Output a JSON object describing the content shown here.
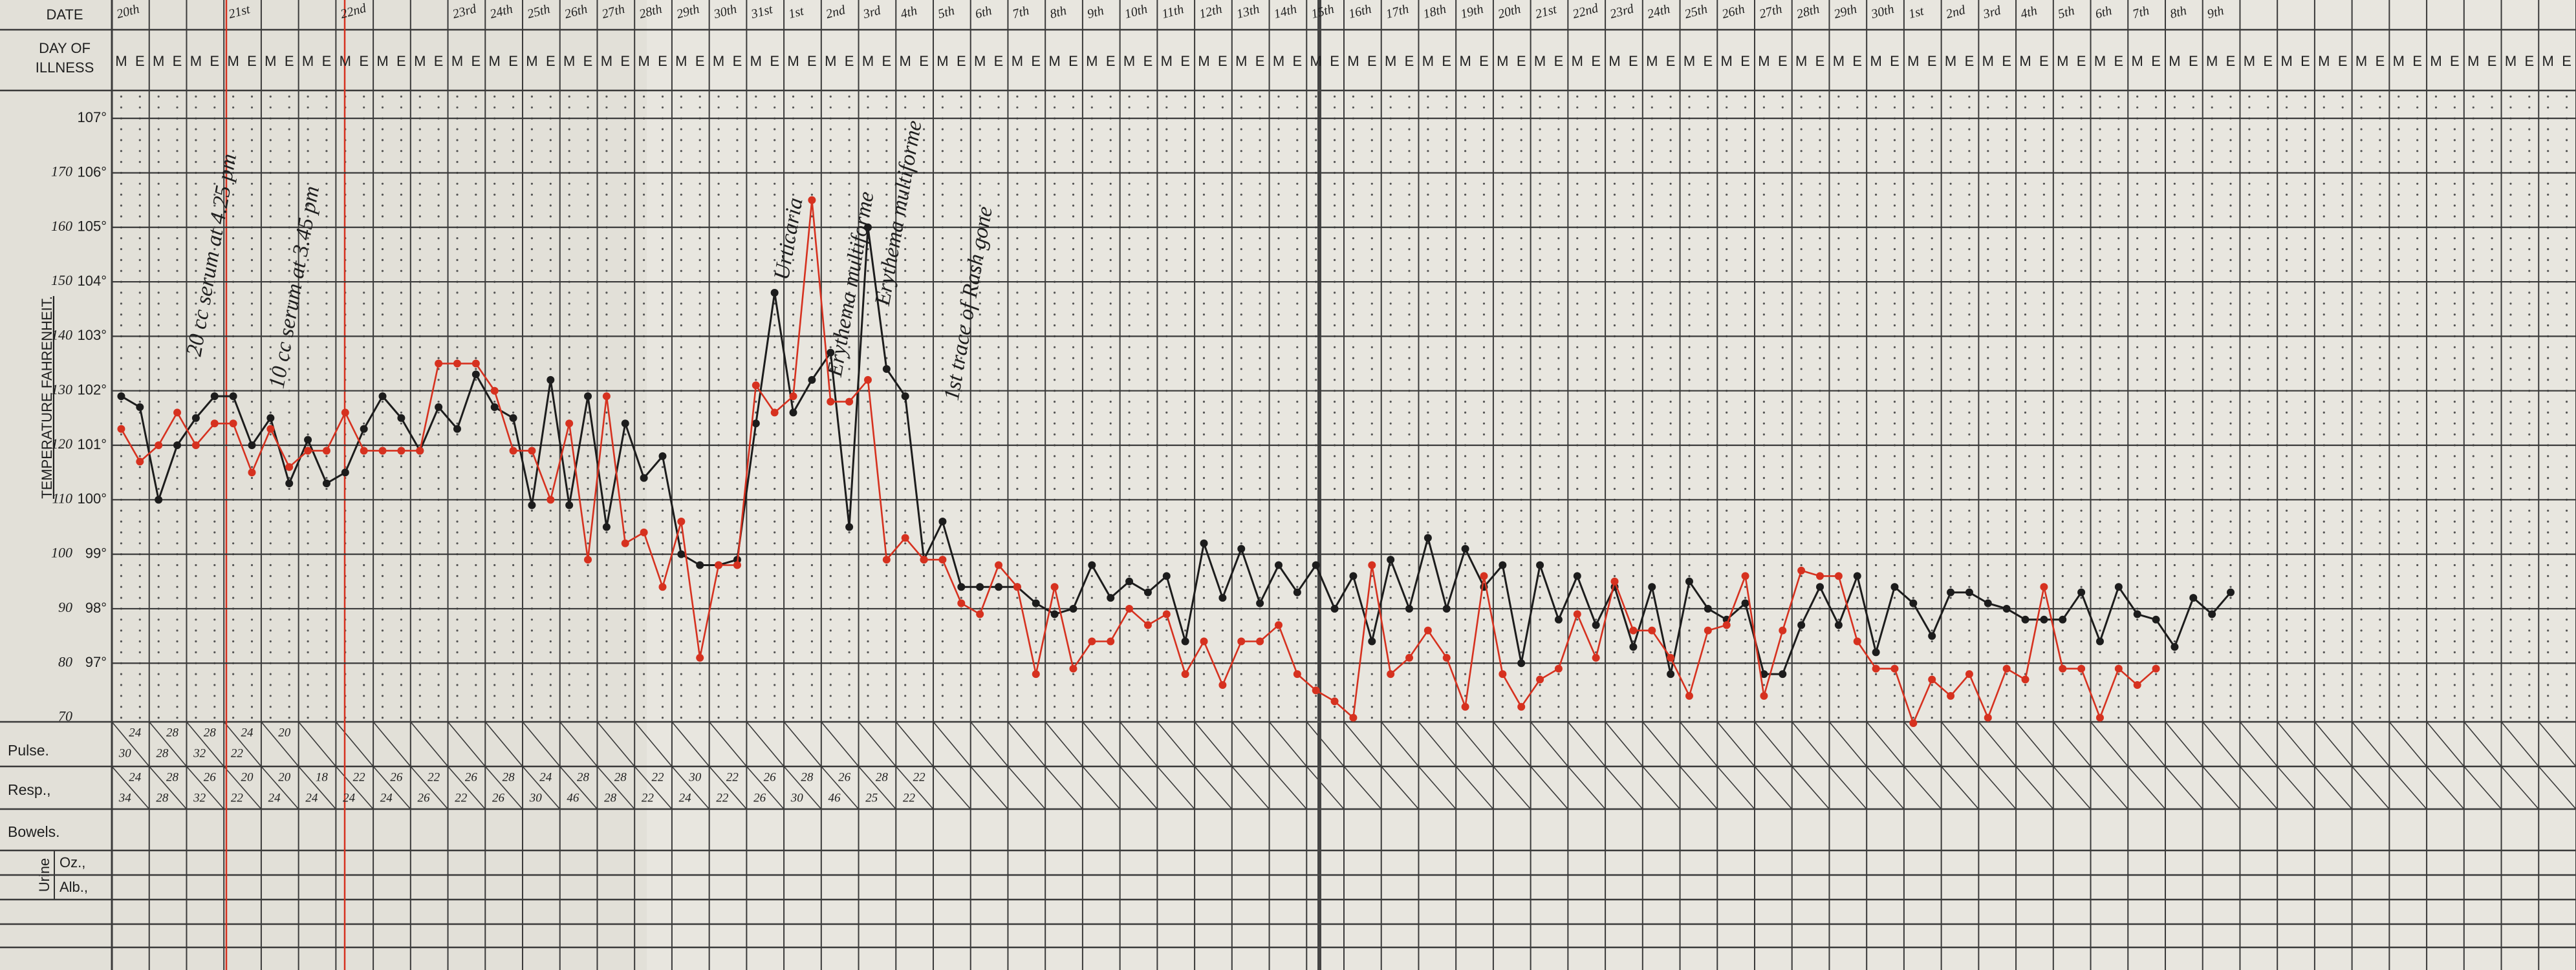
{
  "chart_data": {
    "type": "line",
    "ylabel": "TEMPERATURE FAHRENHEIT.",
    "categories": [
      "M",
      "E",
      "M",
      "E",
      "M",
      "E",
      "M",
      "E",
      "M",
      "E",
      "M",
      "E",
      "M",
      "E",
      "M",
      "E",
      "M",
      "E",
      "M",
      "E",
      "M",
      "E",
      "M",
      "E",
      "M",
      "E",
      "M",
      "E",
      "M",
      "E",
      "M",
      "E",
      "M",
      "E",
      "M",
      "E",
      "M",
      "E",
      "M",
      "E",
      "M",
      "E",
      "M",
      "E",
      "M",
      "E",
      "M",
      "E",
      "M",
      "E",
      "M",
      "E",
      "M",
      "E",
      "M",
      "E",
      "M",
      "E",
      "M",
      "E",
      "M",
      "E",
      "M",
      "E",
      "M",
      "E",
      "M",
      "E",
      "M",
      "E",
      "M",
      "E",
      "M",
      "E",
      "M",
      "E",
      "M",
      "E",
      "M",
      "E",
      "M",
      "E",
      "M",
      "E",
      "M",
      "E",
      "M",
      "E",
      "M",
      "E",
      "M",
      "E",
      "M",
      "E",
      "M",
      "E",
      "M",
      "E",
      "M",
      "E",
      "M",
      "E",
      "M",
      "E",
      "M",
      "E",
      "M",
      "E",
      "M",
      "E",
      "M",
      "E",
      "M",
      "E",
      "M",
      "E",
      "M",
      "E",
      "M",
      "E",
      "M",
      "E",
      "M",
      "E",
      "M",
      "E",
      "M",
      "E",
      "M",
      "E",
      "M",
      "E"
    ],
    "dates": [
      "20th",
      null,
      null,
      "21st",
      null,
      null,
      "22nd",
      null,
      null,
      "23rd",
      "24th",
      "25th",
      "26th",
      "27th",
      "28th",
      "29th",
      "30th",
      "31st",
      "1st",
      "2nd",
      "3rd",
      "4th",
      "5th",
      "6th",
      "7th",
      "8th",
      "9th",
      "10th",
      "11th",
      "12th",
      "13th",
      "14th",
      "15th",
      "16th",
      "17th",
      "18th",
      "19th",
      "20th",
      "21st",
      "22nd",
      "23rd",
      "24th",
      "25th",
      "26th",
      "27th",
      "28th",
      "29th",
      "30th",
      "1st",
      "2nd",
      "3rd",
      "4th",
      "5th",
      "6th",
      "7th",
      "8th",
      "9th",
      null,
      null,
      null,
      null,
      null,
      null,
      null,
      null,
      null
    ],
    "series": [
      {
        "color": "#1c1c1c",
        "values": [
          101.9,
          101.7,
          100.0,
          101.0,
          101.5,
          101.9,
          101.9,
          101.0,
          101.5,
          100.3,
          101.1,
          100.3,
          100.5,
          101.3,
          101.9,
          101.5,
          100.9,
          101.7,
          101.3,
          102.3,
          101.7,
          101.5,
          99.9,
          102.2,
          99.9,
          101.9,
          99.5,
          101.4,
          100.4,
          100.8,
          99.0,
          98.8,
          98.8,
          98.9,
          101.4,
          103.8,
          101.6,
          102.2,
          102.7,
          99.5,
          105.0,
          102.4,
          101.9,
          98.9,
          99.6,
          98.4,
          98.4,
          98.4,
          98.4,
          98.1,
          97.9,
          98.0,
          98.8,
          98.2,
          98.5,
          98.3,
          98.6,
          97.4,
          99.2,
          98.2,
          99.1,
          98.1,
          98.8,
          98.3,
          98.8,
          98.0,
          98.6,
          97.4,
          98.9,
          98.0,
          99.3,
          98.0,
          99.1,
          98.4,
          98.8,
          97.0,
          98.8,
          97.8,
          98.6,
          97.7,
          98.4,
          97.3,
          98.4,
          96.8,
          98.5,
          98.0,
          97.8,
          98.1,
          96.8,
          96.8,
          97.7,
          98.4,
          97.7,
          98.6,
          97.2,
          98.4,
          98.1,
          97.5,
          98.3,
          98.3,
          98.1,
          98.0,
          97.8,
          97.8,
          97.8,
          98.3,
          97.4,
          98.4,
          97.9,
          97.8,
          97.3,
          98.2,
          97.9,
          98.3,
          null,
          null,
          null,
          null,
          null,
          null,
          null,
          null,
          null,
          null,
          null,
          null,
          null,
          null,
          null,
          null,
          null,
          null
        ]
      },
      {
        "color": "#d6311f",
        "axis": "y2",
        "values": [
          123,
          117,
          120,
          126,
          120,
          124,
          124,
          115,
          123,
          116,
          119,
          119,
          126,
          119,
          119,
          119,
          119,
          135,
          135,
          135,
          130,
          119,
          119,
          110,
          124,
          99,
          129,
          102,
          104,
          94,
          106,
          81,
          98,
          98,
          131,
          126,
          129,
          165,
          128,
          128,
          132,
          99,
          103,
          99,
          99,
          91,
          89,
          98,
          94,
          78,
          94,
          79,
          84,
          84,
          90,
          87,
          89,
          78,
          84,
          76,
          84,
          84,
          87,
          78,
          75,
          73,
          70,
          98,
          78,
          81,
          86,
          81,
          72,
          96,
          78,
          72,
          77,
          79,
          89,
          81,
          95,
          86,
          86,
          81,
          74,
          86,
          87,
          96,
          74,
          86,
          97,
          96,
          96,
          84,
          79,
          79,
          69,
          77,
          74,
          78,
          70,
          79,
          77,
          94,
          79,
          79,
          70,
          79,
          76,
          79,
          null,
          null,
          null,
          null,
          null,
          null,
          null,
          null,
          null,
          null,
          null,
          null,
          null,
          null,
          null,
          null,
          null,
          null,
          null,
          null,
          null,
          null
        ]
      }
    ],
    "ylim": [
      95.9,
      107.5
    ],
    "yticks": [
      {
        "value": 97,
        "label": "97°"
      },
      {
        "value": 98,
        "label": "98°"
      },
      {
        "value": 99,
        "label": "99°"
      },
      {
        "value": 100,
        "label": "100°"
      },
      {
        "value": 101,
        "label": "101°"
      },
      {
        "value": 102,
        "label": "102°"
      },
      {
        "value": 103,
        "label": "103°"
      },
      {
        "value": 104,
        "label": "104°"
      },
      {
        "value": 105,
        "label": "105°"
      },
      {
        "value": 106,
        "label": "106°"
      },
      {
        "value": 107,
        "label": "107°"
      }
    ],
    "y2lim": [
      69,
      185
    ],
    "y2ticks": [
      70,
      80,
      90,
      100,
      110,
      120,
      130,
      140,
      150,
      160,
      170
    ],
    "grid": true,
    "annotations": [
      "20 cc serum at 4.25 pm",
      "10 cc serum at 3.45 pm",
      "Urticaria",
      "Erythema multiforme",
      "Erythema multiforme",
      "1st trace of Rash gone"
    ]
  },
  "header": {
    "date": "DATE",
    "day_of_illness": [
      "DAY OF",
      "ILLNESS"
    ]
  },
  "record_rows": {
    "labels": [
      "Pulse.",
      "Resp.,",
      "Bowels."
    ],
    "urine": "Urine",
    "urine_rows": [
      "Oz.,",
      "Alb.,"
    ],
    "pulse_upper": [
      24,
      28,
      28,
      24,
      20
    ],
    "pulse_lower": [
      30,
      28,
      32,
      22
    ],
    "resp_upper": [
      24,
      28,
      26,
      20,
      20,
      18,
      22,
      26,
      22,
      26,
      28,
      24,
      28,
      28,
      22,
      30,
      22,
      26,
      28,
      26,
      28,
      22
    ],
    "resp_lower": [
      34,
      28,
      32,
      22,
      24,
      24,
      24,
      24,
      26,
      22,
      26,
      30,
      46,
      28,
      22,
      24,
      22,
      26,
      30,
      46,
      25,
      22
    ]
  }
}
